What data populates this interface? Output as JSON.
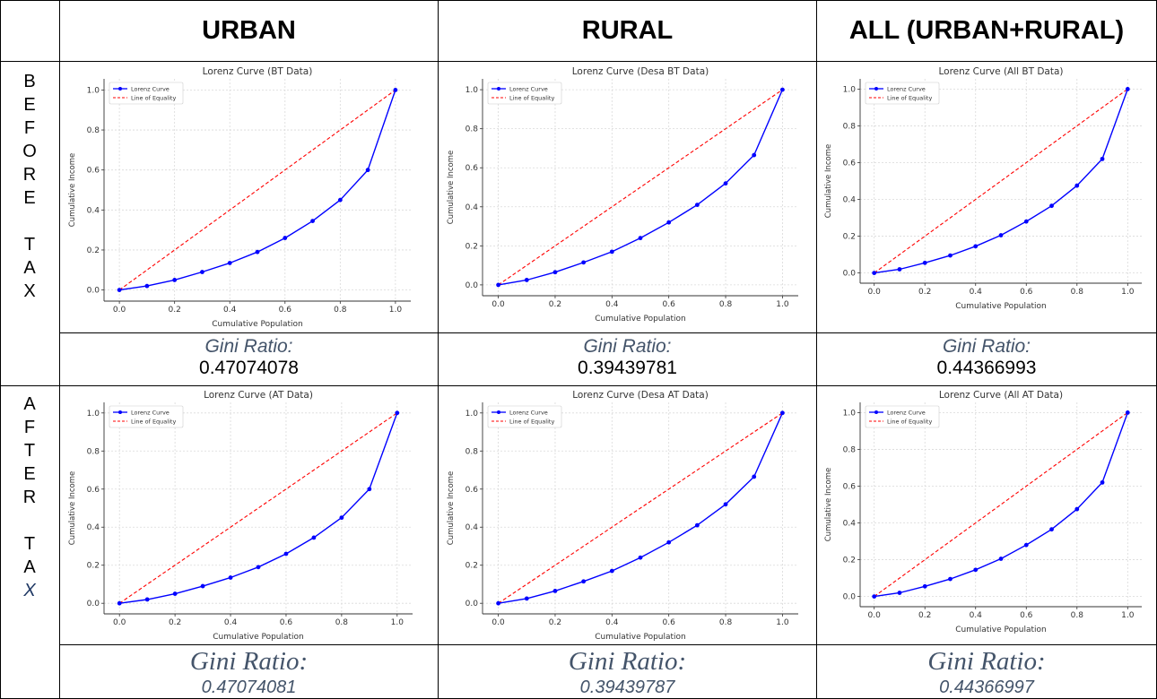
{
  "table": {
    "headers": [
      "URBAN",
      "RURAL",
      "ALL (URBAN+RURAL)"
    ],
    "row_labels": {
      "before_tax": [
        "B",
        "E",
        "F",
        "O",
        "R",
        "E",
        "",
        "T",
        "A",
        "X"
      ],
      "after_tax": [
        "A",
        "F",
        "T",
        "E",
        "R",
        "",
        "T",
        "A",
        "X"
      ]
    },
    "gini_before": [
      {
        "label": "Gini Ratio:",
        "value": "0.47074078"
      },
      {
        "label": "Gini Ratio:",
        "value": "0.39439781"
      },
      {
        "label": "Gini Ratio:",
        "value": "0.44366993"
      }
    ],
    "gini_after": [
      {
        "label": "Gini Ratio:",
        "value": "0.47074081"
      },
      {
        "label": "Gini Ratio:",
        "value": "0.39439787"
      },
      {
        "label": "Gini Ratio:",
        "value": "0.44366997"
      }
    ]
  },
  "colors": {
    "lorenz": "#0000ff",
    "equality": "#ff0000",
    "gini_label": "#44546a",
    "row_label_italic": "#1f3864"
  },
  "chart_data": [
    {
      "type": "line",
      "title": "Lorenz Curve (BT Data)",
      "xlabel": "Cumulative Population",
      "ylabel": "Cumulative Income",
      "xlim": [
        0,
        1
      ],
      "ylim": [
        0,
        1
      ],
      "xticks": [
        "0.0",
        "0.2",
        "0.4",
        "0.6",
        "0.8",
        "1.0"
      ],
      "yticks": [
        "0.0",
        "0.2",
        "0.4",
        "0.6",
        "0.8",
        "1.0"
      ],
      "grid": true,
      "legend": "top-left",
      "series": [
        {
          "name": "Lorenz Curve",
          "x": [
            0,
            0.1,
            0.2,
            0.3,
            0.4,
            0.5,
            0.6,
            0.7,
            0.8,
            0.9,
            1.0
          ],
          "y": [
            0,
            0.02,
            0.05,
            0.09,
            0.135,
            0.19,
            0.26,
            0.345,
            0.45,
            0.6,
            1.0
          ]
        },
        {
          "name": "Line of Equality",
          "x": [
            0,
            1
          ],
          "y": [
            0,
            1
          ]
        }
      ]
    },
    {
      "type": "line",
      "title": "Lorenz Curve (Desa BT Data)",
      "xlabel": "Cumulative Population",
      "ylabel": "Cumulative Income",
      "xlim": [
        0,
        1
      ],
      "ylim": [
        0,
        1
      ],
      "xticks": [
        "0.0",
        "0.2",
        "0.4",
        "0.6",
        "0.8",
        "1.0"
      ],
      "yticks": [
        "0.0",
        "0.2",
        "0.4",
        "0.6",
        "0.8",
        "1.0"
      ],
      "grid": true,
      "legend": "top-left",
      "series": [
        {
          "name": "Lorenz Curve",
          "x": [
            0,
            0.1,
            0.2,
            0.3,
            0.4,
            0.5,
            0.6,
            0.7,
            0.8,
            0.9,
            1.0
          ],
          "y": [
            0,
            0.025,
            0.065,
            0.115,
            0.17,
            0.24,
            0.32,
            0.41,
            0.52,
            0.665,
            1.0
          ]
        },
        {
          "name": "Line of Equality",
          "x": [
            0,
            1
          ],
          "y": [
            0,
            1
          ]
        }
      ]
    },
    {
      "type": "line",
      "title": "Lorenz Curve (All BT Data)",
      "xlabel": "Cumulative Population",
      "ylabel": "Cumulative Income",
      "xlim": [
        0,
        1
      ],
      "ylim": [
        0,
        1
      ],
      "xticks": [
        "0.0",
        "0.2",
        "0.4",
        "0.6",
        "0.8",
        "1.0"
      ],
      "yticks": [
        "0.0",
        "0.2",
        "0.4",
        "0.6",
        "0.8",
        "1.0"
      ],
      "grid": true,
      "legend": "top-left",
      "series": [
        {
          "name": "Lorenz Curve",
          "x": [
            0,
            0.1,
            0.2,
            0.3,
            0.4,
            0.5,
            0.6,
            0.7,
            0.8,
            0.9,
            1.0
          ],
          "y": [
            0,
            0.02,
            0.055,
            0.095,
            0.145,
            0.205,
            0.28,
            0.365,
            0.475,
            0.62,
            1.0
          ]
        },
        {
          "name": "Line of Equality",
          "x": [
            0,
            1
          ],
          "y": [
            0,
            1
          ]
        }
      ]
    },
    {
      "type": "line",
      "title": "Lorenz Curve (AT Data)",
      "xlabel": "Cumulative Population",
      "ylabel": "Cumulative Income",
      "xlim": [
        0,
        1
      ],
      "ylim": [
        0,
        1
      ],
      "xticks": [
        "0.0",
        "0.2",
        "0.4",
        "0.6",
        "0.8",
        "1.0"
      ],
      "yticks": [
        "0.0",
        "0.2",
        "0.4",
        "0.6",
        "0.8",
        "1.0"
      ],
      "grid": true,
      "legend": "top-left",
      "series": [
        {
          "name": "Lorenz Curve",
          "x": [
            0,
            0.1,
            0.2,
            0.3,
            0.4,
            0.5,
            0.6,
            0.7,
            0.8,
            0.9,
            1.0
          ],
          "y": [
            0,
            0.02,
            0.05,
            0.09,
            0.135,
            0.19,
            0.26,
            0.345,
            0.45,
            0.6,
            1.0
          ]
        },
        {
          "name": "Line of Equality",
          "x": [
            0,
            1
          ],
          "y": [
            0,
            1
          ]
        }
      ]
    },
    {
      "type": "line",
      "title": "Lorenz Curve (Desa AT Data)",
      "xlabel": "Cumulative Population",
      "ylabel": "Cumulative Income",
      "xlim": [
        0,
        1
      ],
      "ylim": [
        0,
        1
      ],
      "xticks": [
        "0.0",
        "0.2",
        "0.4",
        "0.6",
        "0.8",
        "1.0"
      ],
      "yticks": [
        "0.0",
        "0.2",
        "0.4",
        "0.6",
        "0.8",
        "1.0"
      ],
      "grid": true,
      "legend": "top-left",
      "series": [
        {
          "name": "Lorenz Curve",
          "x": [
            0,
            0.1,
            0.2,
            0.3,
            0.4,
            0.5,
            0.6,
            0.7,
            0.8,
            0.9,
            1.0
          ],
          "y": [
            0,
            0.025,
            0.065,
            0.115,
            0.17,
            0.24,
            0.32,
            0.41,
            0.52,
            0.665,
            1.0
          ]
        },
        {
          "name": "Line of Equality",
          "x": [
            0,
            1
          ],
          "y": [
            0,
            1
          ]
        }
      ]
    },
    {
      "type": "line",
      "title": "Lorenz Curve (All AT Data)",
      "xlabel": "Cumulative Population",
      "ylabel": "Cumulative Income",
      "xlim": [
        0,
        1
      ],
      "ylim": [
        0,
        1
      ],
      "xticks": [
        "0.0",
        "0.2",
        "0.4",
        "0.6",
        "0.8",
        "1.0"
      ],
      "yticks": [
        "0.0",
        "0.2",
        "0.4",
        "0.6",
        "0.8",
        "1.0"
      ],
      "grid": true,
      "legend": "top-left",
      "series": [
        {
          "name": "Lorenz Curve",
          "x": [
            0,
            0.1,
            0.2,
            0.3,
            0.4,
            0.5,
            0.6,
            0.7,
            0.8,
            0.9,
            1.0
          ],
          "y": [
            0,
            0.02,
            0.055,
            0.095,
            0.145,
            0.205,
            0.28,
            0.365,
            0.475,
            0.62,
            1.0
          ]
        },
        {
          "name": "Line of Equality",
          "x": [
            0,
            1
          ],
          "y": [
            0,
            1
          ]
        }
      ]
    }
  ]
}
